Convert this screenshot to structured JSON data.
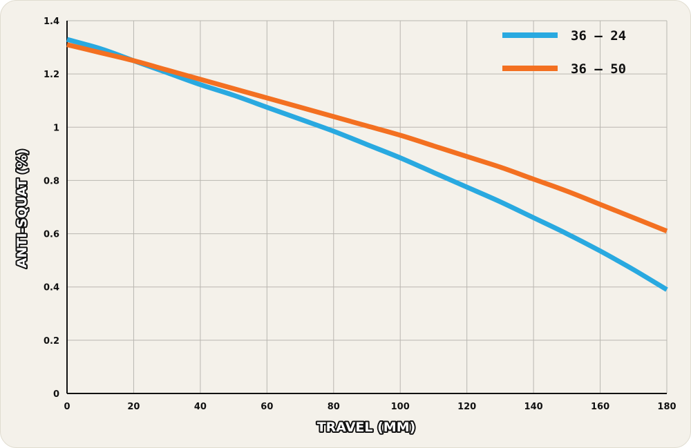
{
  "chart_data": {
    "type": "line",
    "xlabel": "TRAVEL (MM)",
    "ylabel": "ANTI-SQUAT (%)",
    "xlim": [
      0,
      180
    ],
    "ylim": [
      0,
      1.4
    ],
    "x_ticks": [
      "0",
      "20",
      "40",
      "60",
      "80",
      "100",
      "120",
      "140",
      "160",
      "180"
    ],
    "y_ticks": [
      "0",
      "0.2",
      "0.4",
      "0.6",
      "0.8",
      "1",
      "1.2",
      "1.4"
    ],
    "grid": true,
    "legend_position": "top-right",
    "x": [
      0,
      10,
      20,
      30,
      40,
      50,
      60,
      70,
      80,
      90,
      100,
      110,
      120,
      130,
      140,
      150,
      160,
      170,
      180
    ],
    "series": [
      {
        "name": "36 – 24",
        "color": "#29a9e0",
        "values": [
          1.33,
          1.295,
          1.25,
          1.205,
          1.16,
          1.12,
          1.075,
          1.03,
          0.985,
          0.935,
          0.885,
          0.83,
          0.775,
          0.72,
          0.66,
          0.6,
          0.535,
          0.465,
          0.39
        ]
      },
      {
        "name": "36 – 50",
        "color": "#f37021",
        "values": [
          1.31,
          1.28,
          1.25,
          1.215,
          1.18,
          1.145,
          1.11,
          1.075,
          1.04,
          1.005,
          0.97,
          0.93,
          0.89,
          0.85,
          0.805,
          0.76,
          0.71,
          0.66,
          0.61
        ]
      }
    ]
  }
}
